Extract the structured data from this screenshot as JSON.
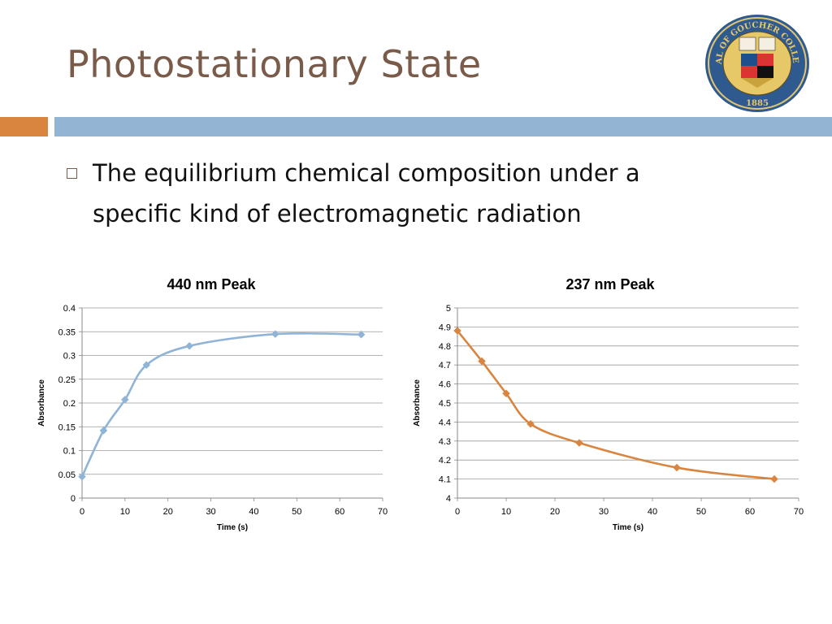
{
  "slide": {
    "title": "Photostationary State",
    "bullet": "The equilibrium chemical composition under a specific kind of electromagnetic radiation"
  },
  "seal": {
    "text_top": "SEAL OF GOUCHER COLLEGE",
    "year": "1885"
  },
  "colors": {
    "title": "#7a5b4a",
    "accent_bar": "#d9853f",
    "main_bar": "#94b4d3",
    "series_440": "#8fb4d6",
    "series_237": "#d9853f",
    "gridline": "#9a9a9a"
  },
  "chart_data": [
    {
      "type": "line",
      "title": "440 nm Peak",
      "xlabel": "Time (s)",
      "ylabel": "Absorbance",
      "xlim": [
        0,
        70
      ],
      "ylim": [
        0,
        0.4
      ],
      "xticks": [
        "0",
        "10",
        "20",
        "30",
        "40",
        "50",
        "60",
        "70"
      ],
      "yticks": [
        "0",
        "0.05",
        "0.1",
        "0.15",
        "0.2",
        "0.25",
        "0.3",
        "0.35",
        "0.4"
      ],
      "grid": true,
      "smooth": true,
      "series": [
        {
          "color": "#8fb4d6",
          "x": [
            0,
            5,
            10,
            15,
            25,
            45,
            65
          ],
          "y": [
            0.045,
            0.142,
            0.207,
            0.28,
            0.32,
            0.345,
            0.344
          ]
        }
      ]
    },
    {
      "type": "line",
      "title": "237 nm Peak",
      "xlabel": "Time (s)",
      "ylabel": "Absorbance",
      "xlim": [
        0,
        70
      ],
      "ylim": [
        4,
        5
      ],
      "xticks": [
        "0",
        "10",
        "20",
        "30",
        "40",
        "50",
        "60",
        "70"
      ],
      "yticks": [
        "4",
        "4.1",
        "4.2",
        "4.3",
        "4.4",
        "4.5",
        "4.6",
        "4.7",
        "4.8",
        "4.9",
        "5"
      ],
      "grid": true,
      "smooth": true,
      "series": [
        {
          "color": "#d9853f",
          "x": [
            0,
            5,
            10,
            15,
            25,
            45,
            65
          ],
          "y": [
            4.88,
            4.72,
            4.55,
            4.39,
            4.29,
            4.16,
            4.1
          ]
        }
      ]
    }
  ]
}
